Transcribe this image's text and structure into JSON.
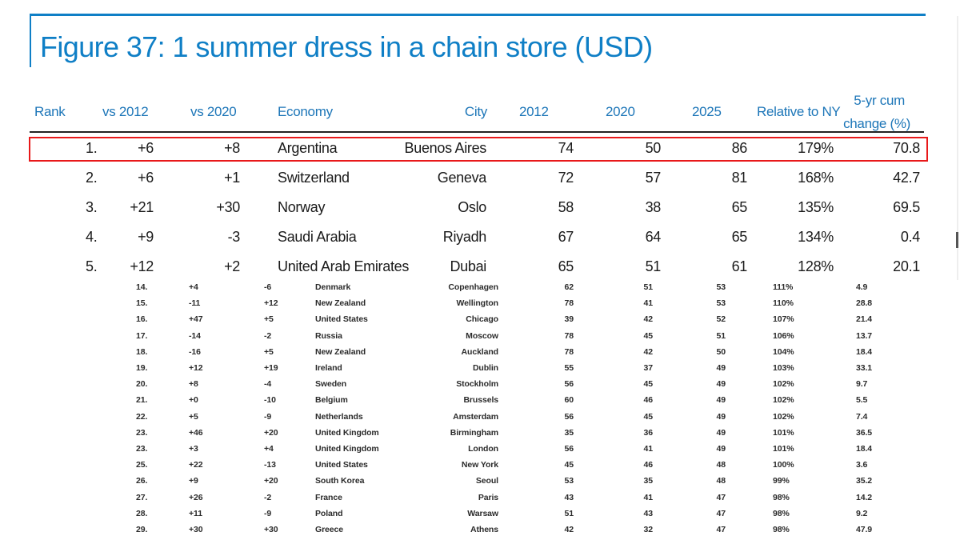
{
  "title": "Figure 37: 1 summer dress in a chain store (USD)",
  "headers": {
    "rank": "Rank",
    "vs2012": "vs 2012",
    "vs2020": "vs 2020",
    "economy": "Economy",
    "city": "City",
    "y2012": "2012",
    "y2020": "2020",
    "y2025": "2025",
    "relative": "Relative to NY",
    "cum_line1": "5-yr cum",
    "cum_line2": "change (%)"
  },
  "top_rows": [
    {
      "rank": "1.",
      "vs2012": "+6",
      "vs2020": "+8",
      "economy": "Argentina",
      "city": "Buenos Aires",
      "y2012": "74",
      "y2020": "50",
      "y2025": "86",
      "relative": "179%",
      "cum": "70.8"
    },
    {
      "rank": "2.",
      "vs2012": "+6",
      "vs2020": "+1",
      "economy": "Switzerland",
      "city": "Geneva",
      "y2012": "72",
      "y2020": "57",
      "y2025": "81",
      "relative": "168%",
      "cum": "42.7"
    },
    {
      "rank": "3.",
      "vs2012": "+21",
      "vs2020": "+30",
      "economy": "Norway",
      "city": "Oslo",
      "y2012": "58",
      "y2020": "38",
      "y2025": "65",
      "relative": "135%",
      "cum": "69.5"
    },
    {
      "rank": "4.",
      "vs2012": "+9",
      "vs2020": "-3",
      "economy": "Saudi Arabia",
      "city": "Riyadh",
      "y2012": "67",
      "y2020": "64",
      "y2025": "65",
      "relative": "134%",
      "cum": "0.4"
    },
    {
      "rank": "5.",
      "vs2012": "+12",
      "vs2020": "+2",
      "economy": "United Arab Emirates",
      "city": "Dubai",
      "y2012": "65",
      "y2020": "51",
      "y2025": "61",
      "relative": "128%",
      "cum": "20.1"
    }
  ],
  "other_rows": [
    {
      "rank": "14.",
      "vs2012": "+4",
      "vs2020": "-6",
      "economy": "Denmark",
      "city": "Copenhagen",
      "y2012": "62",
      "y2020": "51",
      "y2025": "53",
      "relative": "111%",
      "cum": "4.9"
    },
    {
      "rank": "15.",
      "vs2012": "-11",
      "vs2020": "+12",
      "economy": "New Zealand",
      "city": "Wellington",
      "y2012": "78",
      "y2020": "41",
      "y2025": "53",
      "relative": "110%",
      "cum": "28.8"
    },
    {
      "rank": "16.",
      "vs2012": "+47",
      "vs2020": "+5",
      "economy": "United States",
      "city": "Chicago",
      "y2012": "39",
      "y2020": "42",
      "y2025": "52",
      "relative": "107%",
      "cum": "21.4"
    },
    {
      "rank": "17.",
      "vs2012": "-14",
      "vs2020": "-2",
      "economy": "Russia",
      "city": "Moscow",
      "y2012": "78",
      "y2020": "45",
      "y2025": "51",
      "relative": "106%",
      "cum": "13.7"
    },
    {
      "rank": "18.",
      "vs2012": "-16",
      "vs2020": "+5",
      "economy": "New Zealand",
      "city": "Auckland",
      "y2012": "78",
      "y2020": "42",
      "y2025": "50",
      "relative": "104%",
      "cum": "18.4"
    },
    {
      "rank": "19.",
      "vs2012": "+12",
      "vs2020": "+19",
      "economy": "Ireland",
      "city": "Dublin",
      "y2012": "55",
      "y2020": "37",
      "y2025": "49",
      "relative": "103%",
      "cum": "33.1"
    },
    {
      "rank": "20.",
      "vs2012": "+8",
      "vs2020": "-4",
      "economy": "Sweden",
      "city": "Stockholm",
      "y2012": "56",
      "y2020": "45",
      "y2025": "49",
      "relative": "102%",
      "cum": "9.7"
    },
    {
      "rank": "21.",
      "vs2012": "+0",
      "vs2020": "-10",
      "economy": "Belgium",
      "city": "Brussels",
      "y2012": "60",
      "y2020": "46",
      "y2025": "49",
      "relative": "102%",
      "cum": "5.5"
    },
    {
      "rank": "22.",
      "vs2012": "+5",
      "vs2020": "-9",
      "economy": "Netherlands",
      "city": "Amsterdam",
      "y2012": "56",
      "y2020": "45",
      "y2025": "49",
      "relative": "102%",
      "cum": "7.4"
    },
    {
      "rank": "23.",
      "vs2012": "+46",
      "vs2020": "+20",
      "economy": "United Kingdom",
      "city": "Birmingham",
      "y2012": "35",
      "y2020": "36",
      "y2025": "49",
      "relative": "101%",
      "cum": "36.5"
    },
    {
      "rank": "23.",
      "vs2012": "+3",
      "vs2020": "+4",
      "economy": "United Kingdom",
      "city": "London",
      "y2012": "56",
      "y2020": "41",
      "y2025": "49",
      "relative": "101%",
      "cum": "18.4"
    },
    {
      "rank": "25.",
      "vs2012": "+22",
      "vs2020": "-13",
      "economy": "United States",
      "city": "New York",
      "y2012": "45",
      "y2020": "46",
      "y2025": "48",
      "relative": "100%",
      "cum": "3.6"
    },
    {
      "rank": "26.",
      "vs2012": "+9",
      "vs2020": "+20",
      "economy": "South Korea",
      "city": "Seoul",
      "y2012": "53",
      "y2020": "35",
      "y2025": "48",
      "relative": "99%",
      "cum": "35.2"
    },
    {
      "rank": "27.",
      "vs2012": "+26",
      "vs2020": "-2",
      "economy": "France",
      "city": "Paris",
      "y2012": "43",
      "y2020": "41",
      "y2025": "47",
      "relative": "98%",
      "cum": "14.2"
    },
    {
      "rank": "28.",
      "vs2012": "+11",
      "vs2020": "-9",
      "economy": "Poland",
      "city": "Warsaw",
      "y2012": "51",
      "y2020": "43",
      "y2025": "47",
      "relative": "98%",
      "cum": "9.2"
    },
    {
      "rank": "29.",
      "vs2012": "+30",
      "vs2020": "+30",
      "economy": "Greece",
      "city": "Athens",
      "y2012": "42",
      "y2020": "32",
      "y2025": "47",
      "relative": "98%",
      "cum": "47.9"
    }
  ],
  "colors": {
    "accent": "#0f7fc6",
    "highlight": "#e8191a"
  }
}
